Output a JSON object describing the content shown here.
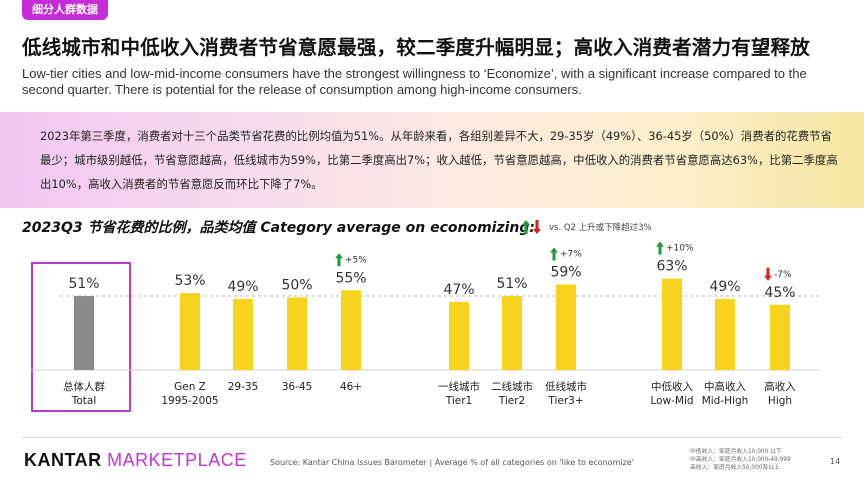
{
  "header": {
    "tag": "细分人群数据",
    "title": "低线城市和中低收入消费者节省意愿最强，较二季度升幅明显；高收入消费者潜力有望释放",
    "subtitle": "Low-tier cities and low-mid-income consumers have the strongest willingness to ‘Economize’, with a significant increase compared to the second quarter. There is potential for the release of consumption among high-income consumers."
  },
  "banner": {
    "text": "2023年第三季度，消费者对十三个品类节省花费的比例均值为51%。从年龄来看，各组别差异不大，29-35岁（49%）、36-45岁（50%）消费者的花费节省最少；城市级别越低，节省意愿越高，低线城市为59%，比第二季度高出7%；收入越低，节省意愿越高，中低收入的消费者节省意愿高达63%，比第二季度高出10%，高收入消费者的节省意愿反而环比下降了7%。"
  },
  "chart_heading": "2023Q3 节省花费的比例，品类均值 Category average on economizing:",
  "legend": {
    "text": "vs. Q2 上升或下降超过3%",
    "up_color": "#1f9a3a",
    "down_color": "#d21f1f"
  },
  "colors": {
    "total_bar": "#8a8a8a",
    "bar": "#f7d31e",
    "accent": "#c535d6"
  },
  "chart_data": {
    "type": "bar",
    "ylim": [
      0,
      70
    ],
    "average_line": 51,
    "groups": [
      {
        "bars": [
          {
            "label_cn": "总体人群",
            "label_en": "Total",
            "value": 51,
            "value_label": "51%",
            "total": true
          }
        ]
      },
      {
        "bars": [
          {
            "label_cn": "Gen Z",
            "label_en": "1995-2005",
            "value": 53,
            "value_label": "53%"
          },
          {
            "label_cn": "29-35",
            "label_en": "",
            "value": 49,
            "value_label": "49%"
          },
          {
            "label_cn": "36-45",
            "label_en": "",
            "value": 50,
            "value_label": "50%"
          },
          {
            "label_cn": "46+",
            "label_en": "",
            "value": 55,
            "value_label": "55%",
            "change": "+5%",
            "direction": "up"
          }
        ]
      },
      {
        "bars": [
          {
            "label_cn": "一线城市",
            "label_en": "Tier1",
            "value": 47,
            "value_label": "47%"
          },
          {
            "label_cn": "二线城市",
            "label_en": "Tier2",
            "value": 51,
            "value_label": "51%"
          },
          {
            "label_cn": "低线城市",
            "label_en": "Tier3+",
            "value": 59,
            "value_label": "59%",
            "change": "+7%",
            "direction": "up"
          }
        ]
      },
      {
        "bars": [
          {
            "label_cn": "中低收入",
            "label_en": "Low-Mid",
            "value": 63,
            "value_label": "63%",
            "change": "+10%",
            "direction": "up"
          },
          {
            "label_cn": "中高收入",
            "label_en": "Mid-High",
            "value": 49,
            "value_label": "49%"
          },
          {
            "label_cn": "高收入",
            "label_en": "High",
            "value": 45,
            "value_label": "45%",
            "change": "-7%",
            "direction": "down"
          }
        ]
      }
    ]
  },
  "footer": {
    "logo_a": "KANTAR",
    "logo_b": "MARKETPLACE",
    "source": "Source:  Kantar China Issues Barometer | Average % of all categories on 'like to economize'",
    "note_1": "中低收入：家庭月收入10,000 以下",
    "note_2": "中高收入：家庭月收入10,000-49,999",
    "note_3": "高收入：家庭月收入50,000及以上",
    "page": "14"
  }
}
